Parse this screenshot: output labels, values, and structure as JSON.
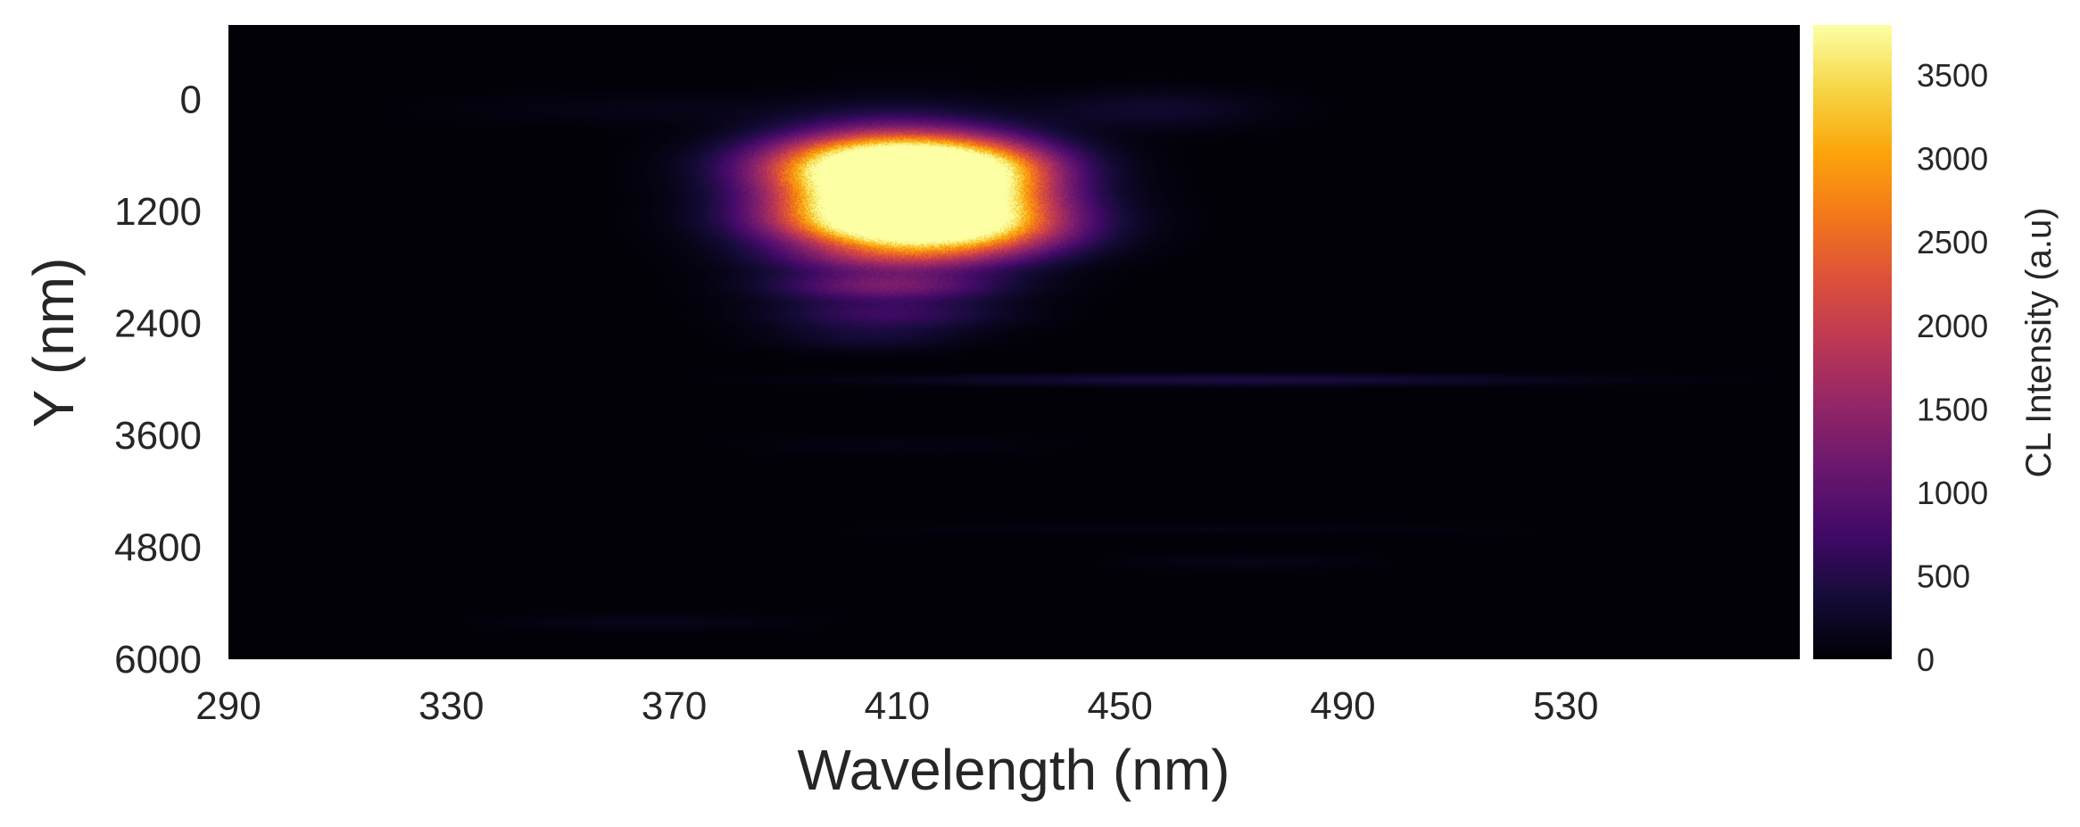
{
  "chart_data": {
    "type": "heatmap",
    "title": "",
    "xlabel": "Wavelength (nm)",
    "ylabel": "Y (nm)",
    "xlim": [
      290,
      572
    ],
    "ylim": [
      6000,
      -800
    ],
    "x_ticks": [
      290,
      330,
      370,
      410,
      450,
      490,
      530
    ],
    "y_ticks": [
      0,
      1200,
      2400,
      3600,
      4800,
      6000
    ],
    "y_inverted": true,
    "colormap": "inferno",
    "colorbar": {
      "label": "CL Intensity (a.u)",
      "range": [
        0,
        3800
      ],
      "ticks": [
        0,
        500,
        1000,
        1500,
        2000,
        2500,
        3000,
        3500
      ]
    },
    "features": [
      {
        "wavelength": 410,
        "y": 1000,
        "intensity": 3800,
        "wavelength_width": 14,
        "y_width": 400
      },
      {
        "wavelength": 410,
        "y": 700,
        "intensity": 3100,
        "wavelength_width": 16,
        "y_width": 220
      },
      {
        "wavelength": 413,
        "y": 1300,
        "intensity": 2400,
        "wavelength_width": 17,
        "y_width": 200
      },
      {
        "wavelength": 420,
        "y": 1150,
        "intensity": 1700,
        "wavelength_width": 13,
        "y_width": 300
      },
      {
        "wavelength": 425,
        "y": 750,
        "intensity": 800,
        "wavelength_width": 10,
        "y_width": 200
      },
      {
        "wavelength": 428,
        "y": 1500,
        "intensity": 450,
        "wavelength_width": 12,
        "y_width": 150
      },
      {
        "wavelength": 408,
        "y": 1700,
        "intensity": 650,
        "wavelength_width": 15,
        "y_width": 110
      },
      {
        "wavelength": 408,
        "y": 2000,
        "intensity": 1050,
        "wavelength_width": 14,
        "y_width": 110
      },
      {
        "wavelength": 408,
        "y": 2300,
        "intensity": 650,
        "wavelength_width": 14,
        "y_width": 110
      },
      {
        "wavelength": 405,
        "y": 2550,
        "intensity": 300,
        "wavelength_width": 12,
        "y_width": 100
      },
      {
        "wavelength": 456,
        "y": 100,
        "intensity": 280,
        "wavelength_width": 14,
        "y_width": 150
      },
      {
        "wavelength": 470,
        "y": 3000,
        "intensity": 420,
        "wavelength_width": 40,
        "y_width": 45
      },
      {
        "wavelength": 365,
        "y": 100,
        "intensity": 110,
        "wavelength_width": 25,
        "y_width": 120
      },
      {
        "wavelength": 365,
        "y": 5600,
        "intensity": 140,
        "wavelength_width": 18,
        "y_width": 60
      },
      {
        "wavelength": 472,
        "y": 4950,
        "intensity": 120,
        "wavelength_width": 15,
        "y_width": 60
      },
      {
        "wavelength": 462,
        "y": 4600,
        "intensity": 90,
        "wavelength_width": 40,
        "y_width": 40
      },
      {
        "wavelength": 410,
        "y": 3700,
        "intensity": 80,
        "wavelength_width": 20,
        "y_width": 80
      }
    ]
  }
}
